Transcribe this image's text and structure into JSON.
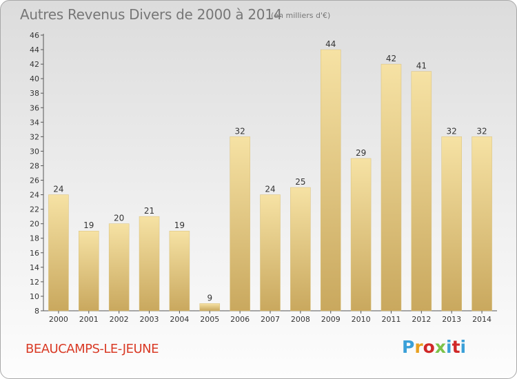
{
  "chart_data": {
    "type": "bar",
    "title": "Autres Revenus Divers de 2000 à 2014",
    "subtitle": "(en milliers d'€)",
    "categories": [
      "2000",
      "2001",
      "2002",
      "2003",
      "2004",
      "2005",
      "2006",
      "2007",
      "2008",
      "2009",
      "2010",
      "2011",
      "2012",
      "2013",
      "2014"
    ],
    "values": [
      24,
      19,
      20,
      21,
      19,
      9,
      32,
      24,
      25,
      44,
      29,
      42,
      41,
      32,
      32
    ],
    "ylim": [
      8,
      46
    ],
    "yticks": [
      8,
      10,
      12,
      14,
      16,
      18,
      20,
      22,
      24,
      26,
      28,
      30,
      32,
      34,
      36,
      38,
      40,
      42,
      44,
      46
    ],
    "grid": false,
    "bar_color": "#e8cf85"
  },
  "footer": {
    "commune": "BEAUCAMPS-LE-JEUNE",
    "logo_letters": [
      "P",
      "r",
      "o",
      "x",
      "i",
      "t",
      "i"
    ],
    "logo_colors": [
      "#3aa0d8",
      "#e8a020",
      "#d02828",
      "#7cc24a",
      "#3aa0d8",
      "#d02828",
      "#3aa0d8"
    ]
  }
}
